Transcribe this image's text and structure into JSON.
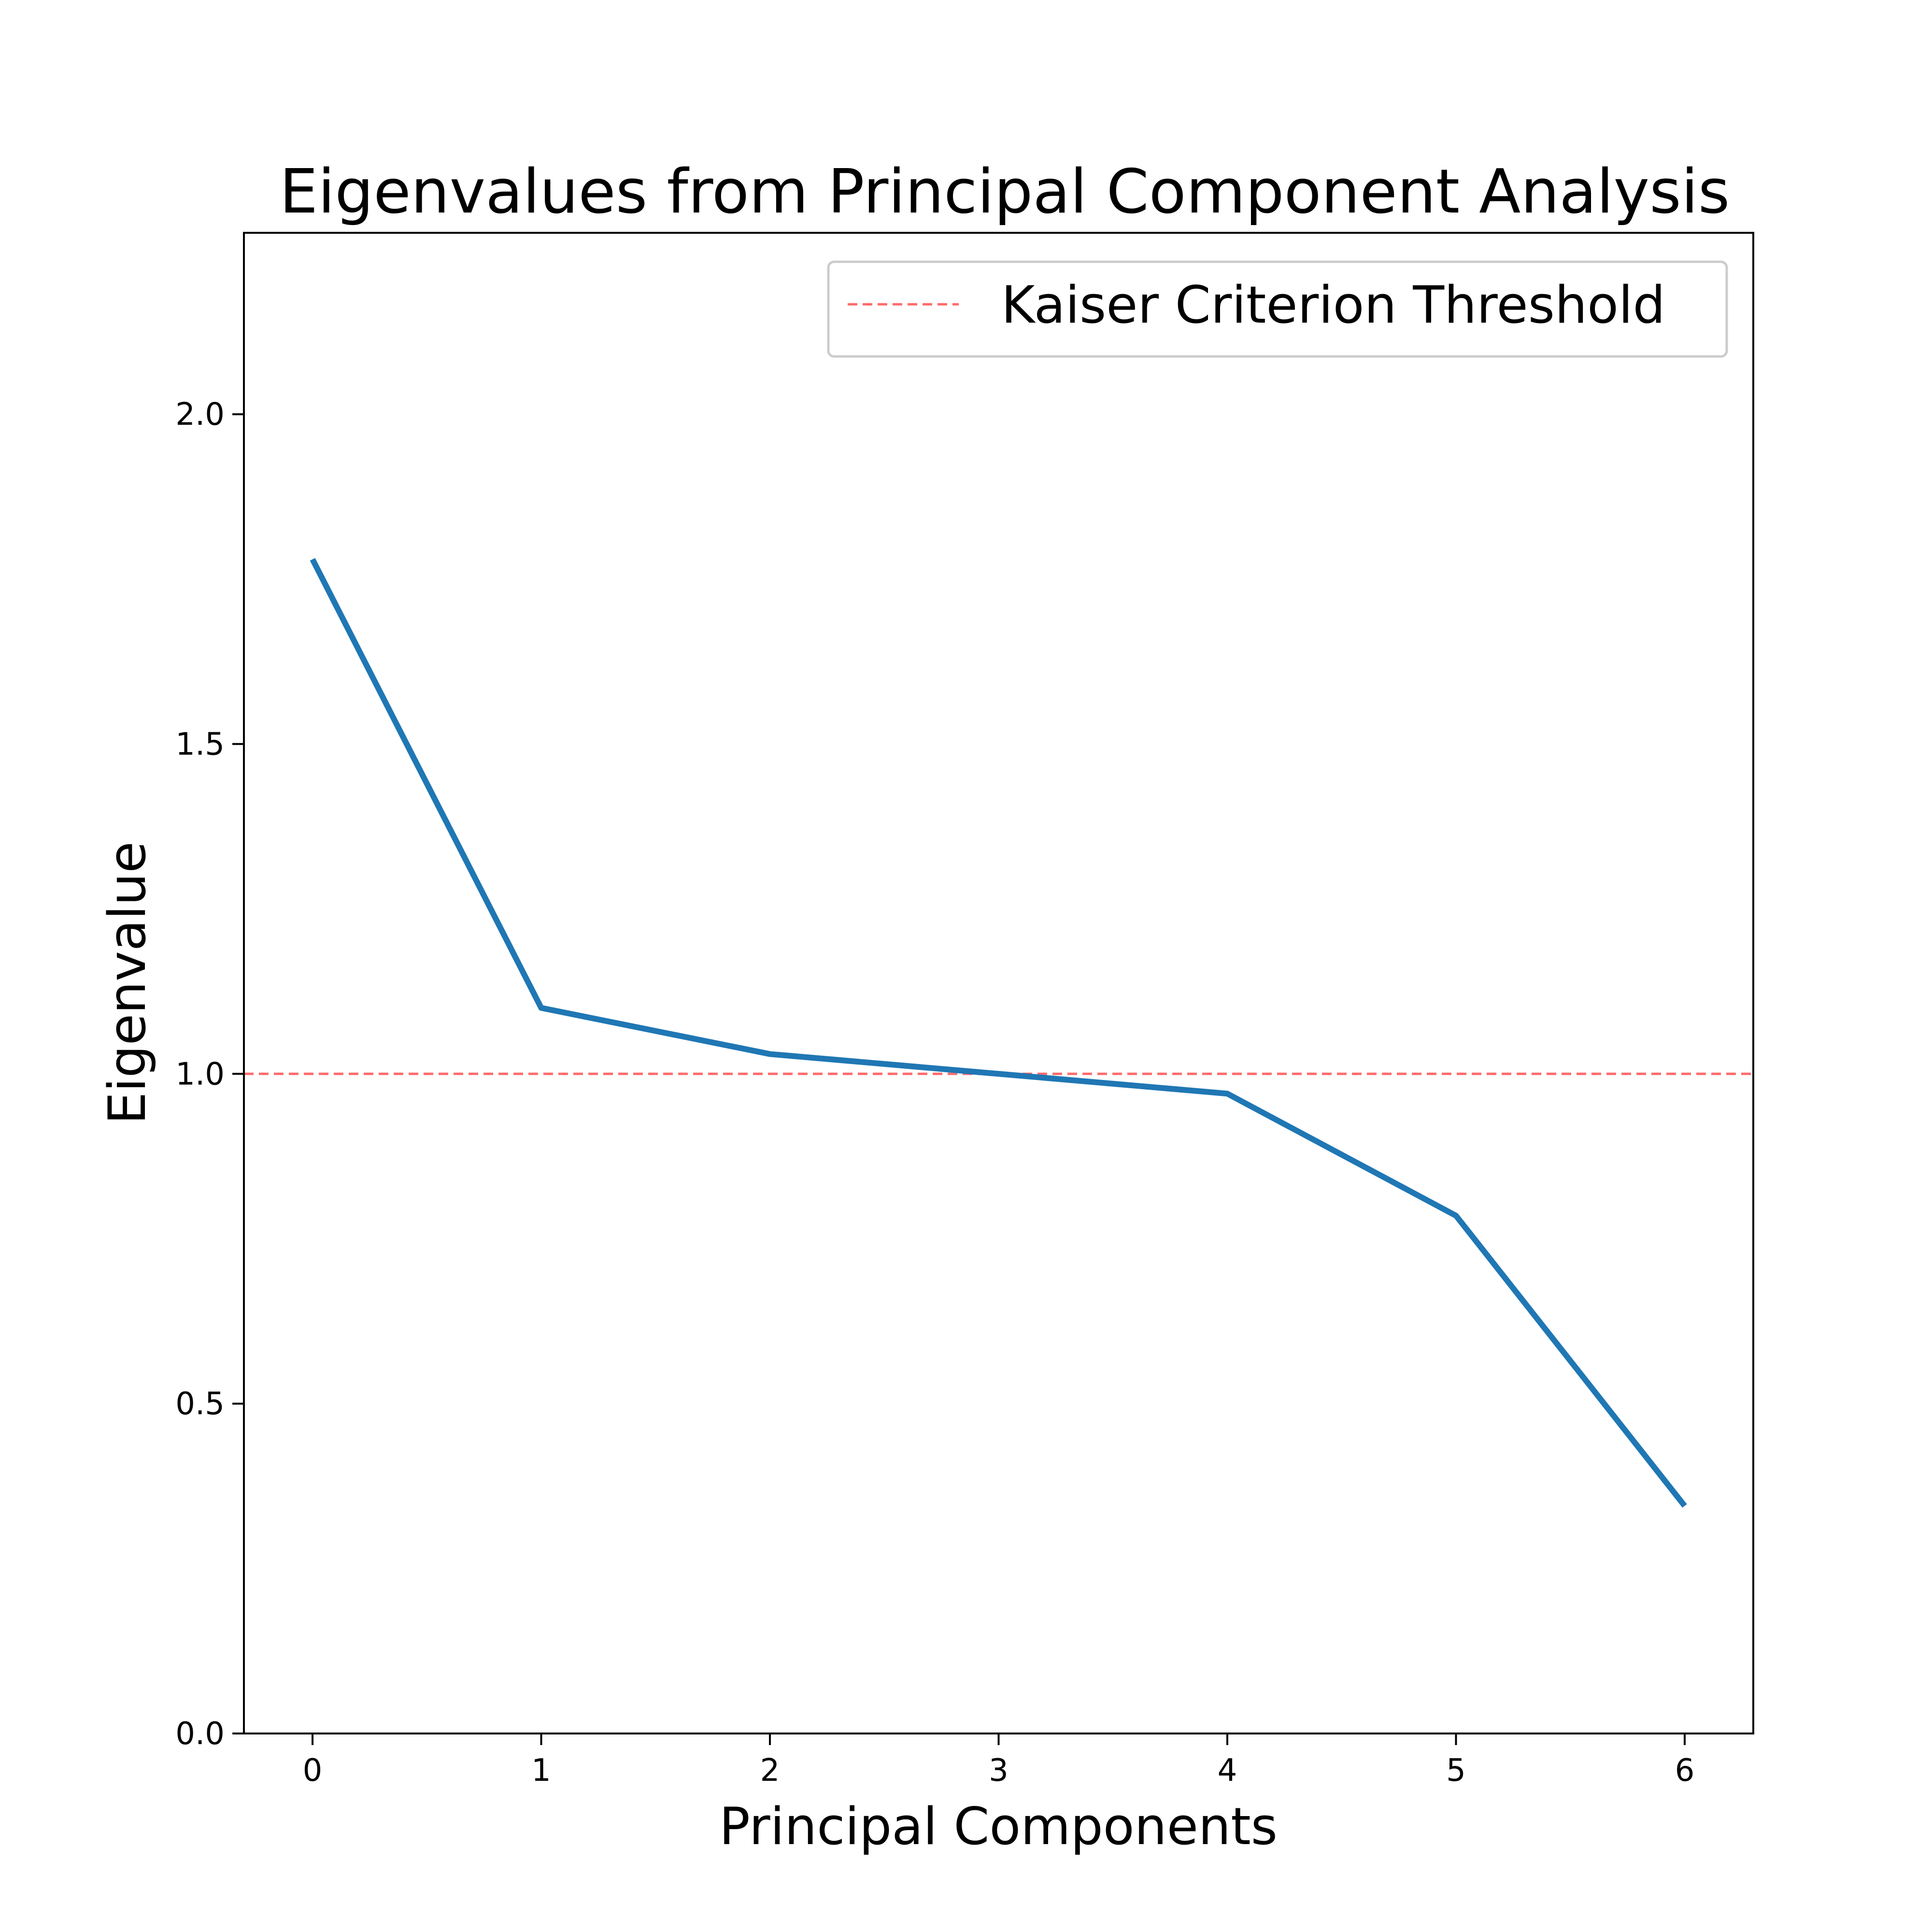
{
  "chart_data": {
    "type": "line",
    "title": "Eigenvalues from Principal Component Analysis",
    "xlabel": "Principal Components",
    "ylabel": "Eigenvalue",
    "x": [
      0,
      1,
      2,
      3,
      4,
      5,
      6
    ],
    "xticks": [
      "0",
      "1",
      "2",
      "3",
      "4",
      "5",
      "6"
    ],
    "yticks": [
      "0.0",
      "0.5",
      "1.0",
      "1.5",
      "2.0"
    ],
    "ytick_values": [
      0.0,
      0.5,
      1.0,
      1.5,
      2.0
    ],
    "xlim": [
      -0.3,
      6.3
    ],
    "ylim": [
      0,
      2.275
    ],
    "grid": false,
    "legend_position": "top-right",
    "series": [
      {
        "values": [
          1.78,
          1.1,
          1.03,
          1.0,
          0.97,
          0.785,
          0.345
        ],
        "color": "#1f77b4"
      }
    ],
    "reference_lines": [
      {
        "name": "Kaiser Criterion Threshold",
        "orientation": "horizontal",
        "value": 1.0,
        "style": "dashed",
        "color": "#ff6b6b"
      }
    ]
  }
}
